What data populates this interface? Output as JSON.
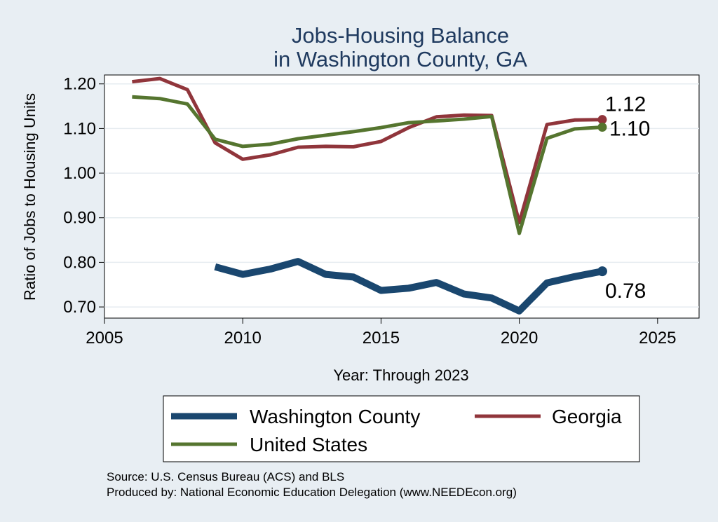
{
  "chart_data": {
    "type": "line",
    "title": [
      "Jobs-Housing Balance",
      "in Washington County, GA"
    ],
    "xlabel": "Year: Through 2023",
    "ylabel": "Ratio of Jobs to Housing Units",
    "xlim": [
      2005,
      2026.5
    ],
    "ylim": [
      0.675,
      1.22
    ],
    "xticks": [
      2005,
      2010,
      2015,
      2020,
      2025
    ],
    "yticks": [
      0.7,
      0.8,
      0.9,
      1.0,
      1.1,
      1.2
    ],
    "ytick_labels": [
      "0.70",
      "0.80",
      "0.90",
      "1.00",
      "1.10",
      "1.20"
    ],
    "grid": true,
    "legend_position": "bottom",
    "series": [
      {
        "name": "Washington County",
        "color": "#1a476f",
        "x": [
          2009,
          2010,
          2011,
          2012,
          2013,
          2014,
          2015,
          2016,
          2017,
          2018,
          2019,
          2020,
          2021,
          2022,
          2023
        ],
        "values": [
          0.79,
          0.773,
          0.785,
          0.802,
          0.773,
          0.767,
          0.737,
          0.742,
          0.755,
          0.729,
          0.72,
          0.691,
          0.754,
          0.768,
          0.78
        ],
        "end_label": "0.78"
      },
      {
        "name": "Georgia",
        "color": "#90353b",
        "x": [
          2006,
          2007,
          2008,
          2009,
          2010,
          2011,
          2012,
          2013,
          2014,
          2015,
          2016,
          2017,
          2018,
          2019,
          2020,
          2021,
          2022,
          2023
        ],
        "values": [
          1.205,
          1.212,
          1.187,
          1.068,
          1.031,
          1.041,
          1.058,
          1.06,
          1.059,
          1.071,
          1.102,
          1.126,
          1.13,
          1.129,
          0.889,
          1.109,
          1.119,
          1.12
        ],
        "end_label": "1.12"
      },
      {
        "name": "United States",
        "color": "#55752f",
        "x": [
          2006,
          2007,
          2008,
          2009,
          2010,
          2011,
          2012,
          2013,
          2014,
          2015,
          2016,
          2017,
          2018,
          2019,
          2020,
          2021,
          2022,
          2023
        ],
        "values": [
          1.171,
          1.167,
          1.155,
          1.076,
          1.06,
          1.065,
          1.077,
          1.085,
          1.093,
          1.102,
          1.113,
          1.117,
          1.121,
          1.127,
          0.865,
          1.078,
          1.099,
          1.103
        ],
        "end_label": "1.10"
      }
    ]
  },
  "source": {
    "line1": "Source: U.S. Census Bureau (ACS) and BLS",
    "line2": "Produced by: National Economic Education Delegation (www.NEEDEcon.org)"
  }
}
